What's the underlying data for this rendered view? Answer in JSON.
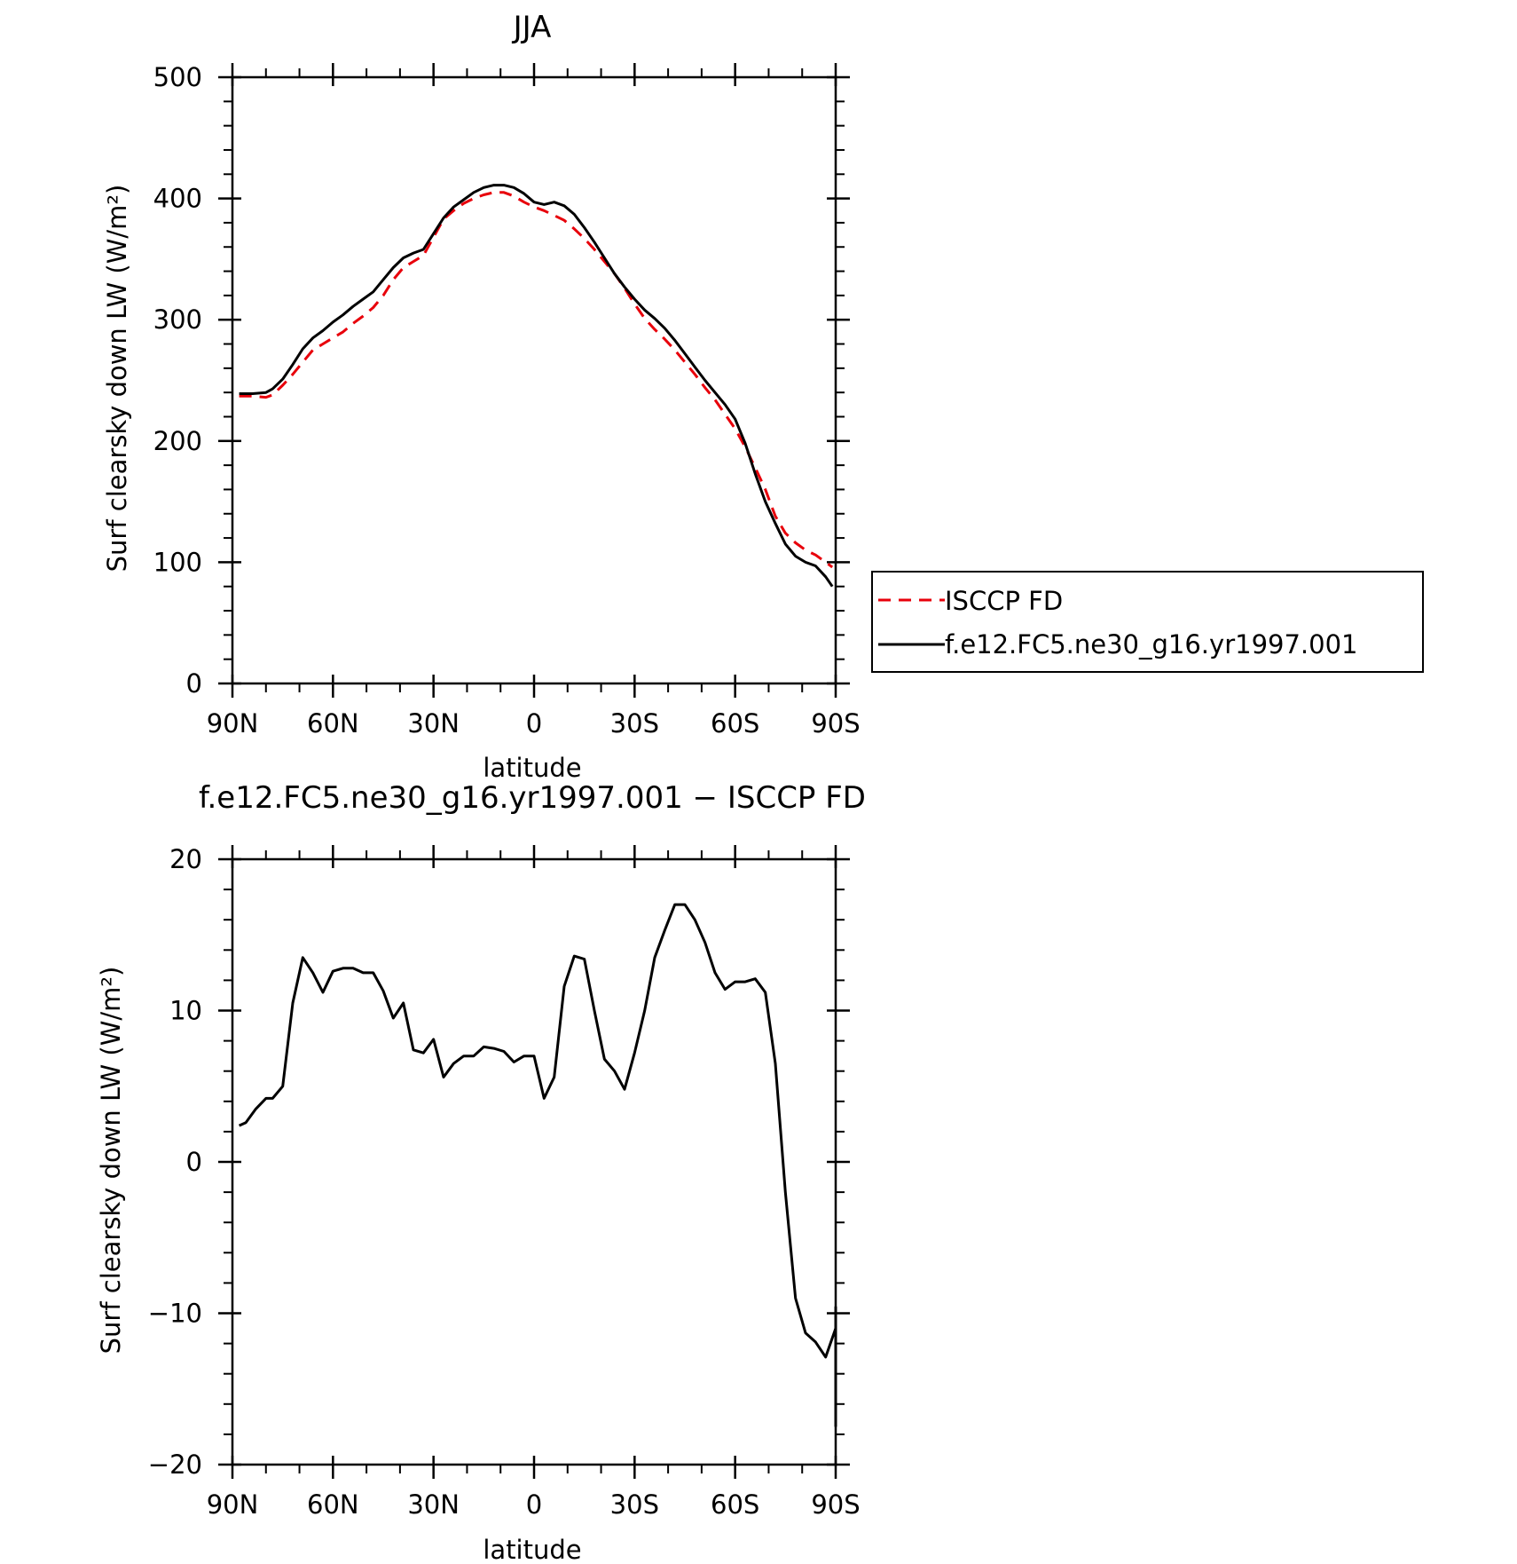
{
  "chart_data": [
    {
      "type": "line",
      "title": "JJA",
      "xlabel": "latitude",
      "ylabel": "Surf clearsky down LW (W/m²)",
      "x_domain": [
        90,
        -90
      ],
      "x_unit": "degrees latitude (positive = N, negative = S)",
      "xticks": [
        90,
        60,
        30,
        0,
        -30,
        -60,
        -90
      ],
      "xtick_labels": [
        "90N",
        "60N",
        "30N",
        "0",
        "30S",
        "60S",
        "90S"
      ],
      "ylim": [
        0,
        500
      ],
      "yticks": [
        0,
        100,
        200,
        300,
        400,
        500
      ],
      "ytick_labels": [
        "0",
        "100",
        "200",
        "300",
        "400",
        "500"
      ],
      "grid": false,
      "legend_position": "right",
      "series": [
        {
          "name": "ISCCP FD",
          "color": "#e8000b",
          "dash": "dashed",
          "points": [
            [
              88,
              237
            ],
            [
              84,
              237
            ],
            [
              80,
              236
            ],
            [
              78,
              238
            ],
            [
              75,
              246
            ],
            [
              72,
              255
            ],
            [
              69,
              265
            ],
            [
              66,
              275
            ],
            [
              63,
              280
            ],
            [
              60,
              285
            ],
            [
              57,
              290
            ],
            [
              54,
              297
            ],
            [
              51,
              303
            ],
            [
              48,
              310
            ],
            [
              45,
              320
            ],
            [
              42,
              333
            ],
            [
              39,
              343
            ],
            [
              36,
              348
            ],
            [
              33,
              353
            ],
            [
              30,
              368
            ],
            [
              27,
              383
            ],
            [
              24,
              390
            ],
            [
              21,
              396
            ],
            [
              18,
              400
            ],
            [
              15,
              403
            ],
            [
              12,
              405
            ],
            [
              9,
              405
            ],
            [
              6,
              402
            ],
            [
              3,
              397
            ],
            [
              0,
              393
            ],
            [
              -3,
              390
            ],
            [
              -6,
              386
            ],
            [
              -9,
              382
            ],
            [
              -12,
              375
            ],
            [
              -15,
              367
            ],
            [
              -18,
              358
            ],
            [
              -21,
              348
            ],
            [
              -24,
              338
            ],
            [
              -27,
              326
            ],
            [
              -30,
              313
            ],
            [
              -33,
              301
            ],
            [
              -36,
              292
            ],
            [
              -39,
              284
            ],
            [
              -42,
              275
            ],
            [
              -45,
              265
            ],
            [
              -48,
              255
            ],
            [
              -51,
              244
            ],
            [
              -54,
              234
            ],
            [
              -57,
              222
            ],
            [
              -60,
              210
            ],
            [
              -63,
              195
            ],
            [
              -66,
              178
            ],
            [
              -69,
              160
            ],
            [
              -72,
              138
            ],
            [
              -75,
              124
            ],
            [
              -78,
              116
            ],
            [
              -81,
              110
            ],
            [
              -84,
              106
            ],
            [
              -87,
              100
            ],
            [
              -89,
              96
            ]
          ]
        },
        {
          "name": "f.e12.FC5.ne30_g16.yr1997.001",
          "color": "#000000",
          "dash": "solid",
          "points": [
            [
              88,
              239
            ],
            [
              84,
              239
            ],
            [
              80,
              240
            ],
            [
              78,
              243
            ],
            [
              75,
              251
            ],
            [
              72,
              263
            ],
            [
              69,
              276
            ],
            [
              66,
              285
            ],
            [
              63,
              291
            ],
            [
              60,
              298
            ],
            [
              57,
              304
            ],
            [
              54,
              311
            ],
            [
              51,
              317
            ],
            [
              48,
              323
            ],
            [
              45,
              333
            ],
            [
              42,
              343
            ],
            [
              39,
              351
            ],
            [
              36,
              355
            ],
            [
              33,
              358
            ],
            [
              30,
              371
            ],
            [
              27,
              384
            ],
            [
              24,
              393
            ],
            [
              21,
              399
            ],
            [
              18,
              405
            ],
            [
              15,
              409
            ],
            [
              12,
              411
            ],
            [
              9,
              411
            ],
            [
              6,
              409
            ],
            [
              3,
              404
            ],
            [
              0,
              397
            ],
            [
              -3,
              395
            ],
            [
              -6,
              397
            ],
            [
              -9,
              394
            ],
            [
              -12,
              387
            ],
            [
              -15,
              376
            ],
            [
              -18,
              364
            ],
            [
              -21,
              351
            ],
            [
              -24,
              338
            ],
            [
              -27,
              327
            ],
            [
              -30,
              317
            ],
            [
              -33,
              308
            ],
            [
              -36,
              301
            ],
            [
              -39,
              293
            ],
            [
              -42,
              283
            ],
            [
              -45,
              272
            ],
            [
              -48,
              261
            ],
            [
              -51,
              250
            ],
            [
              -54,
              240
            ],
            [
              -57,
              230
            ],
            [
              -60,
              218
            ],
            [
              -63,
              198
            ],
            [
              -66,
              173
            ],
            [
              -69,
              150
            ],
            [
              -72,
              132
            ],
            [
              -75,
              115
            ],
            [
              -78,
              105
            ],
            [
              -81,
              100
            ],
            [
              -84,
              97
            ],
            [
              -87,
              88
            ],
            [
              -89,
              80
            ]
          ]
        }
      ]
    },
    {
      "type": "line",
      "title": "f.e12.FC5.ne30_g16.yr1997.001 − ISCCP FD",
      "xlabel": "latitude",
      "ylabel": "Surf clearsky down LW (W/m²)",
      "x_domain": [
        90,
        -90
      ],
      "x_unit": "degrees latitude (positive = N, negative = S)",
      "xticks": [
        90,
        60,
        30,
        0,
        -30,
        -60,
        -90
      ],
      "xtick_labels": [
        "90N",
        "60N",
        "30N",
        "0",
        "30S",
        "60S",
        "90S"
      ],
      "ylim": [
        -20,
        20
      ],
      "yticks": [
        -20,
        -10,
        0,
        10,
        20
      ],
      "ytick_labels": [
        "−20",
        "−10",
        "0",
        "10",
        "20"
      ],
      "grid": false,
      "series": [
        {
          "color": "#000000",
          "dash": "solid",
          "points": [
            [
              88,
              2.4
            ],
            [
              86,
              2.6
            ],
            [
              83,
              3.5
            ],
            [
              80,
              4.2
            ],
            [
              78,
              4.2
            ],
            [
              75,
              5.0
            ],
            [
              72,
              10.5
            ],
            [
              69,
              13.5
            ],
            [
              66,
              12.5
            ],
            [
              63,
              11.2
            ],
            [
              60,
              12.6
            ],
            [
              57,
              12.8
            ],
            [
              54,
              12.8
            ],
            [
              51,
              12.5
            ],
            [
              48,
              12.5
            ],
            [
              45,
              11.3
            ],
            [
              42,
              9.5
            ],
            [
              39,
              10.5
            ],
            [
              36,
              7.4
            ],
            [
              33,
              7.2
            ],
            [
              30,
              8.1
            ],
            [
              27,
              5.6
            ],
            [
              24,
              6.5
            ],
            [
              21,
              7.0
            ],
            [
              18,
              7.0
            ],
            [
              15,
              7.6
            ],
            [
              12,
              7.5
            ],
            [
              9,
              7.3
            ],
            [
              6,
              6.6
            ],
            [
              3,
              7.0
            ],
            [
              0,
              7.0
            ],
            [
              -3,
              4.2
            ],
            [
              -6,
              5.6
            ],
            [
              -9,
              11.6
            ],
            [
              -12,
              13.6
            ],
            [
              -15,
              13.4
            ],
            [
              -18,
              10.0
            ],
            [
              -21,
              6.8
            ],
            [
              -24,
              6.0
            ],
            [
              -27,
              4.8
            ],
            [
              -30,
              7.2
            ],
            [
              -33,
              10.0
            ],
            [
              -36,
              13.5
            ],
            [
              -39,
              15.3
            ],
            [
              -42,
              17.0
            ],
            [
              -45,
              17.0
            ],
            [
              -48,
              16.0
            ],
            [
              -51,
              14.5
            ],
            [
              -54,
              12.5
            ],
            [
              -57,
              11.4
            ],
            [
              -60,
              11.9
            ],
            [
              -63,
              11.9
            ],
            [
              -66,
              12.1
            ],
            [
              -69,
              11.2
            ],
            [
              -72,
              6.5
            ],
            [
              -75,
              -2.0
            ],
            [
              -78,
              -9.0
            ],
            [
              -81,
              -11.3
            ],
            [
              -84,
              -11.9
            ],
            [
              -87,
              -12.9
            ],
            [
              -90,
              -11.0
            ],
            [
              -93,
              -9.6
            ],
            [
              -96,
              -12.4
            ],
            [
              -98,
              -17.5
            ]
          ]
        }
      ]
    }
  ],
  "legend": {
    "entries": [
      {
        "label": "ISCCP FD",
        "color": "#e8000b",
        "dash": "dashed"
      },
      {
        "label": "f.e12.FC5.ne30_g16.yr1997.001",
        "color": "#000000",
        "dash": "solid"
      }
    ]
  }
}
